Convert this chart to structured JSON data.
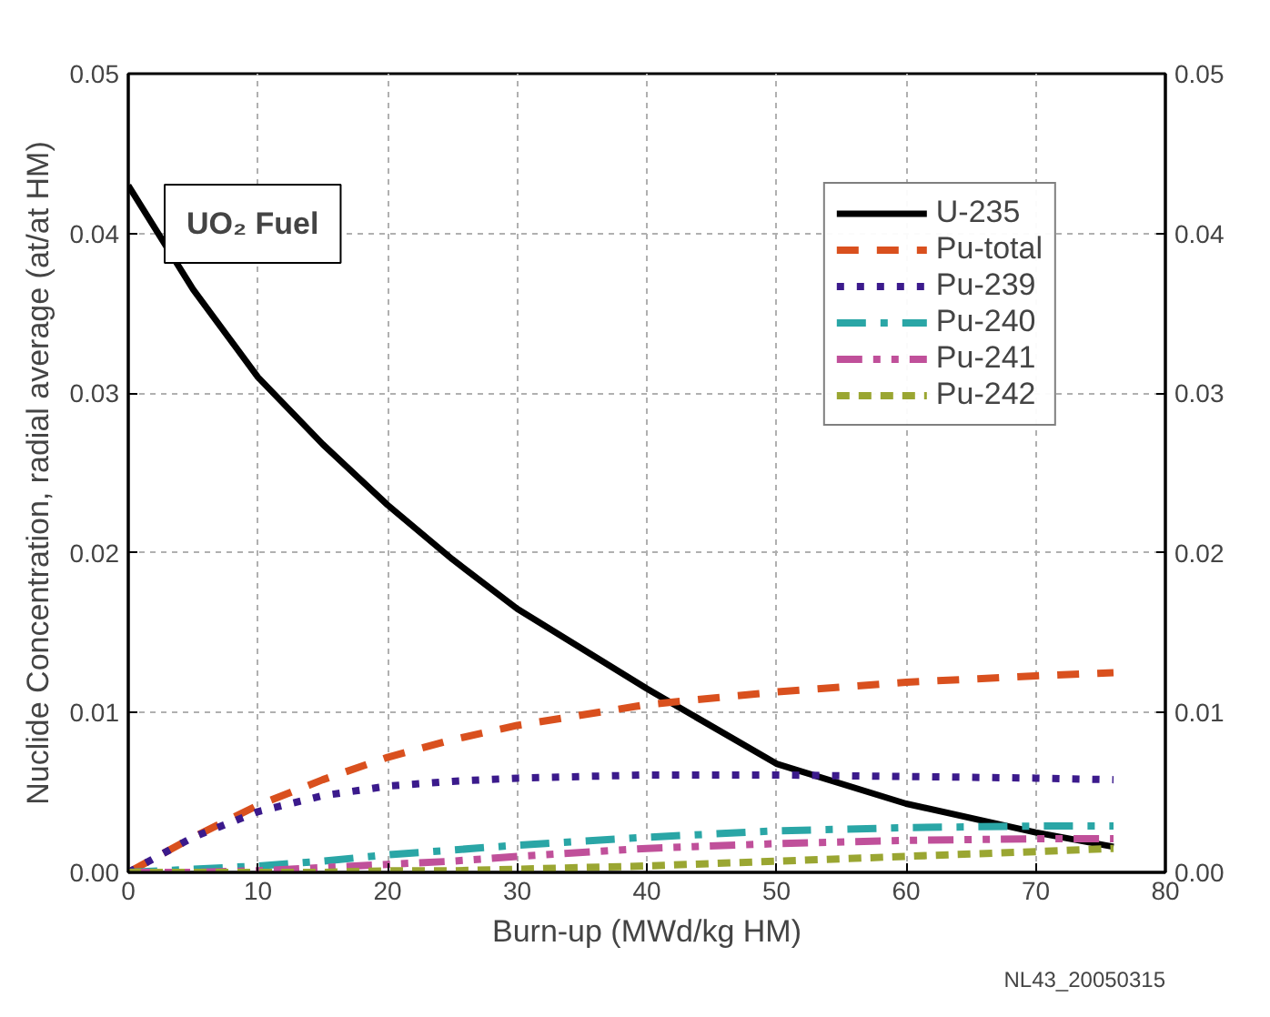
{
  "chart_data": {
    "type": "line",
    "xlabel": "Burn-up (MWd/kg HM)",
    "ylabel": "Nuclide Concentration, radial average (at/at HM)",
    "xlim": [
      0,
      80
    ],
    "xticks": [
      0,
      10,
      20,
      30,
      40,
      50,
      60,
      70,
      80
    ],
    "ylim": [
      0,
      0.05
    ],
    "yticks": [
      {
        "value": 0,
        "label": "0.00"
      },
      {
        "value": 0.01,
        "label": "0.01"
      },
      {
        "value": 0.02,
        "label": "0.02"
      },
      {
        "value": 0.03,
        "label": "0.03"
      },
      {
        "value": 0.04,
        "label": "0.04"
      },
      {
        "value": 0.05,
        "label": "0.05"
      }
    ],
    "y2lim": [
      0,
      0.05
    ],
    "y2ticks": [
      {
        "value": 0,
        "label": "0.00"
      },
      {
        "value": 0.01,
        "label": "0.01"
      },
      {
        "value": 0.02,
        "label": "0.02"
      },
      {
        "value": 0.03,
        "label": "0.03"
      },
      {
        "value": 0.04,
        "label": "0.04"
      },
      {
        "value": 0.05,
        "label": "0.05"
      }
    ],
    "grid": true,
    "legend": "top right",
    "annotations": [
      "UO₂ Fuel",
      "NL43_20050315"
    ],
    "x": [
      0,
      5,
      10,
      15,
      20,
      25,
      30,
      40,
      50,
      60,
      70,
      76
    ],
    "series": [
      {
        "name": "U-235",
        "color": "#000000",
        "line_style": "solid",
        "values": [
          0.043,
          0.0365,
          0.031,
          0.0268,
          0.023,
          0.0196,
          0.0165,
          0.0115,
          0.0068,
          0.0043,
          0.0025,
          0.0016
        ]
      },
      {
        "name": "Pu-total",
        "color": "#d9501e",
        "line_style": "dashed",
        "values": [
          0,
          0.0022,
          0.0042,
          0.0058,
          0.0072,
          0.0083,
          0.0092,
          0.0105,
          0.0113,
          0.0119,
          0.0123,
          0.0125
        ]
      },
      {
        "name": "Pu-239",
        "color": "#3b1a8c",
        "line_style": "dotted",
        "values": [
          0,
          0.0022,
          0.0038,
          0.0048,
          0.0054,
          0.0057,
          0.0059,
          0.0061,
          0.0061,
          0.006,
          0.0059,
          0.0058
        ]
      },
      {
        "name": "Pu-240",
        "color": "#2aa6a6",
        "line_style": "dashdot",
        "values": [
          0,
          0.0002,
          0.0004,
          0.0007,
          0.0011,
          0.0014,
          0.0017,
          0.0022,
          0.0026,
          0.0028,
          0.0029,
          0.0029
        ]
      },
      {
        "name": "Pu-241",
        "color": "#c0509a",
        "line_style": "dashdotdot",
        "values": [
          0,
          0,
          0.0001,
          0.0003,
          0.0005,
          0.0007,
          0.001,
          0.0015,
          0.0018,
          0.002,
          0.0021,
          0.0021
        ]
      },
      {
        "name": "Pu-242",
        "color": "#9aa632",
        "line_style": "shortdash",
        "values": [
          0,
          0,
          0,
          0,
          0.0001,
          0.0001,
          0.0002,
          0.0004,
          0.0007,
          0.001,
          0.0013,
          0.0015
        ]
      }
    ]
  }
}
